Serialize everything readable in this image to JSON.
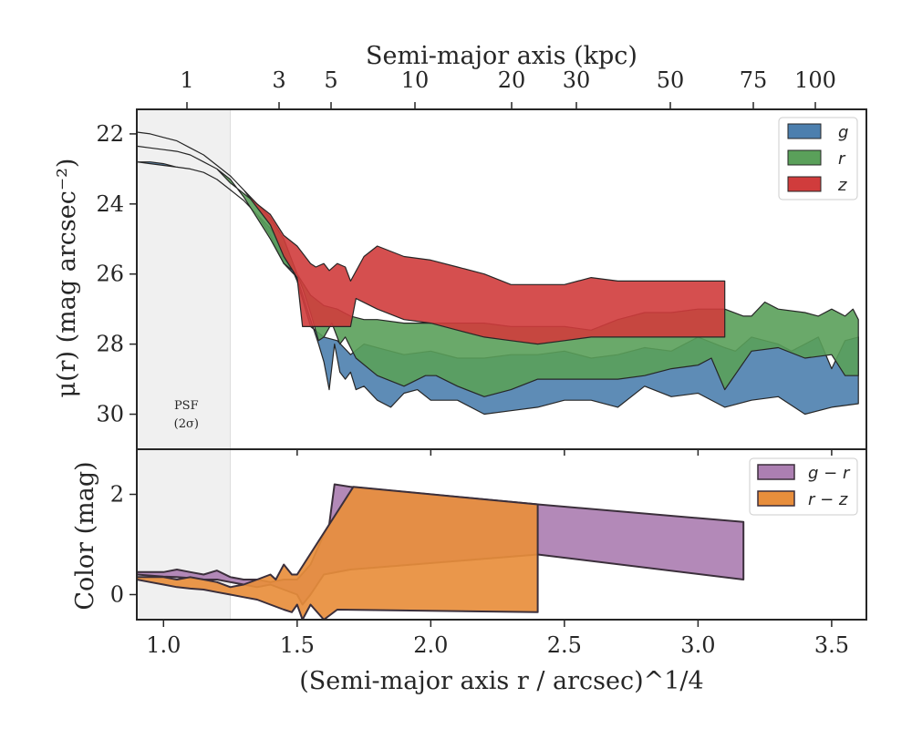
{
  "colors": {
    "g": "#4c7fae",
    "r": "#5aa05a",
    "z": "#d03c3c",
    "g_minus_r": "#ac7fb2",
    "r_minus_z": "#e88e3c",
    "psf_shade": "#f0f0f0",
    "edge": "#262626"
  },
  "chart_data": [
    {
      "type": "area",
      "panel": "surface-brightness",
      "xlabel": "",
      "ylabel": "μ(r) (mag arcsec⁻²)",
      "top_axis_label": "Semi-major axis (kpc)",
      "top_axis_ticks": [
        "1",
        "3",
        "5",
        "10",
        "20",
        "30",
        "50",
        "75",
        "100"
      ],
      "top_axis_tick_values_kpc": [
        1,
        3,
        5,
        10,
        20,
        30,
        50,
        75,
        100
      ],
      "xlim": [
        0.9,
        3.63
      ],
      "ylim": [
        31.0,
        21.3
      ],
      "yticks": [
        "22",
        "24",
        "26",
        "28",
        "30"
      ],
      "ytick_values": [
        22,
        24,
        26,
        28,
        30
      ],
      "y_inverted": true,
      "psf_shade_x": [
        0.9,
        1.25
      ],
      "psf_annotation": [
        "PSF",
        "(2σ)"
      ],
      "legend": {
        "position": "top-right",
        "entries": [
          "g",
          "r",
          "z"
        ]
      },
      "series": [
        {
          "name": "g",
          "x_lower": [
            0.9,
            0.95,
            1.0,
            1.05,
            1.1,
            1.15,
            1.2,
            1.25,
            1.3,
            1.35,
            1.4,
            1.45,
            1.5,
            1.55,
            1.58,
            1.6,
            1.62,
            1.64,
            1.66,
            1.68,
            1.7,
            1.72,
            1.75,
            1.8,
            1.85,
            1.9,
            1.95,
            2.0,
            2.05,
            2.1,
            2.2,
            2.3,
            2.4,
            2.5,
            2.6,
            2.7,
            2.8,
            2.9,
            3.0,
            3.1,
            3.2,
            3.3,
            3.4,
            3.5,
            3.6
          ],
          "y_lower": [
            22.8,
            22.85,
            22.9,
            22.95,
            23.0,
            23.1,
            23.3,
            23.6,
            23.9,
            24.3,
            24.9,
            25.7,
            26.1,
            27.3,
            28.0,
            28.5,
            29.3,
            28.0,
            28.8,
            29.0,
            28.8,
            29.3,
            29.2,
            29.6,
            29.8,
            29.4,
            29.3,
            29.6,
            29.6,
            29.6,
            30.0,
            29.9,
            29.8,
            29.6,
            29.6,
            29.8,
            29.2,
            29.5,
            29.4,
            29.8,
            29.6,
            29.5,
            30.0,
            29.8,
            29.7
          ],
          "x_upper": [
            3.6,
            3.55,
            3.5,
            3.45,
            3.4,
            3.35,
            3.3,
            3.2,
            3.17,
            3.14,
            3.1,
            3.0,
            2.9,
            2.8,
            2.7,
            2.6,
            2.5,
            2.4,
            2.3,
            2.2,
            2.1,
            2.0,
            1.9,
            1.8,
            1.75,
            1.7,
            1.65,
            1.6,
            1.55,
            1.5,
            1.45,
            1.4,
            1.35,
            1.3,
            1.25,
            1.2,
            1.15,
            1.1,
            1.05,
            1.0,
            0.95,
            0.9
          ],
          "y_upper": [
            27.8,
            27.9,
            28.7,
            27.8,
            28.0,
            28.2,
            28.0,
            27.8,
            28.0,
            28.2,
            28.1,
            27.8,
            28.2,
            28.1,
            28.3,
            28.4,
            28.2,
            28.3,
            28.3,
            28.4,
            28.4,
            28.2,
            28.3,
            28.1,
            28.0,
            28.3,
            27.9,
            27.8,
            27.5,
            26.2,
            25.3,
            24.7,
            24.3,
            23.9,
            23.6,
            23.3,
            23.1,
            23.0,
            22.95,
            22.85,
            22.8,
            22.8
          ]
        },
        {
          "name": "r",
          "x_lower": [
            0.9,
            0.95,
            1.0,
            1.05,
            1.1,
            1.15,
            1.2,
            1.25,
            1.3,
            1.35,
            1.4,
            1.45,
            1.5,
            1.52,
            1.55,
            1.58,
            1.6,
            1.63,
            1.66,
            1.68,
            1.72,
            1.8,
            1.9,
            1.98,
            2.02,
            2.1,
            2.2,
            2.3,
            2.4,
            2.5,
            2.6,
            2.7,
            2.8,
            2.9,
            3.0,
            3.05,
            3.1,
            3.2,
            3.3,
            3.4,
            3.5,
            3.55,
            3.6
          ],
          "y_lower": [
            22.35,
            22.4,
            22.45,
            22.5,
            22.6,
            22.8,
            23.0,
            23.3,
            23.8,
            24.4,
            25.0,
            25.7,
            26.0,
            26.4,
            27.1,
            27.9,
            27.8,
            27.4,
            28.0,
            27.8,
            28.4,
            28.9,
            29.2,
            28.9,
            28.9,
            29.2,
            29.5,
            29.3,
            29.0,
            29.0,
            29.0,
            29.0,
            28.9,
            28.7,
            28.6,
            28.4,
            29.3,
            28.2,
            28.1,
            28.4,
            28.3,
            28.9,
            28.9
          ],
          "x_upper": [
            3.6,
            3.58,
            3.55,
            3.5,
            3.45,
            3.4,
            3.3,
            3.25,
            3.2,
            3.17,
            3.1,
            3.0,
            2.9,
            2.8,
            2.7,
            2.6,
            2.5,
            2.4,
            2.3,
            2.2,
            2.1,
            2.0,
            1.9,
            1.8,
            1.75,
            1.7,
            1.65,
            1.6,
            1.55,
            1.5,
            1.45,
            1.4,
            1.35,
            1.3,
            1.25,
            1.2,
            1.15,
            1.1,
            1.05,
            1.0,
            0.95,
            0.9
          ],
          "y_upper": [
            27.3,
            27.0,
            27.2,
            27.0,
            27.2,
            27.1,
            27.0,
            26.8,
            27.2,
            27.2,
            27.0,
            27.0,
            27.1,
            27.1,
            27.3,
            27.6,
            27.5,
            27.5,
            27.5,
            27.4,
            27.4,
            27.4,
            27.4,
            27.3,
            27.3,
            27.2,
            27.0,
            26.9,
            26.6,
            26.0,
            25.0,
            24.4,
            24.0,
            23.7,
            23.4,
            23.0,
            22.8,
            22.6,
            22.5,
            22.45,
            22.4,
            22.35
          ]
        },
        {
          "name": "z",
          "x_lower": [
            0.9,
            0.95,
            1.0,
            1.05,
            1.1,
            1.15,
            1.2,
            1.25,
            1.3,
            1.35,
            1.4,
            1.45,
            1.5,
            1.52,
            1.6,
            1.7,
            1.72,
            1.8,
            1.9,
            2.0,
            2.1,
            2.2,
            2.3,
            2.4,
            2.5,
            2.6,
            2.7,
            2.8,
            2.9,
            3.0,
            3.1
          ],
          "y_lower": [
            21.95,
            22.0,
            22.1,
            22.2,
            22.4,
            22.6,
            22.9,
            23.2,
            23.6,
            24.1,
            24.6,
            25.5,
            26.1,
            27.5,
            27.5,
            27.5,
            26.7,
            27.0,
            27.3,
            27.4,
            27.6,
            27.8,
            27.9,
            28.0,
            27.9,
            27.8,
            27.8,
            27.8,
            27.8,
            27.8,
            27.8
          ],
          "x_upper": [
            3.1,
            3.0,
            2.9,
            2.8,
            2.7,
            2.6,
            2.5,
            2.4,
            2.3,
            2.2,
            2.1,
            2.0,
            1.9,
            1.8,
            1.75,
            1.7,
            1.68,
            1.65,
            1.62,
            1.6,
            1.57,
            1.55,
            1.5,
            1.45,
            1.4,
            1.35,
            1.3,
            1.25,
            1.2,
            1.15,
            1.1,
            1.05,
            1.0,
            0.95,
            0.9
          ],
          "y_upper": [
            26.2,
            26.2,
            26.2,
            26.2,
            26.2,
            26.1,
            26.3,
            26.3,
            26.3,
            26.0,
            25.8,
            25.6,
            25.5,
            25.2,
            25.5,
            26.2,
            25.8,
            25.7,
            25.9,
            25.7,
            25.8,
            25.7,
            25.2,
            24.9,
            24.3,
            24.0,
            23.6,
            23.2,
            22.9,
            22.6,
            22.4,
            22.2,
            22.1,
            22.0,
            21.95
          ]
        }
      ]
    },
    {
      "type": "area",
      "panel": "color",
      "xlabel": "(Semi-major axis r / arcsec)^1/4",
      "ylabel": "Color (mag)",
      "xlim": [
        0.9,
        3.63
      ],
      "ylim": [
        -0.5,
        2.9
      ],
      "xticks": [
        "1.0",
        "1.5",
        "2.0",
        "2.5",
        "3.0",
        "3.5"
      ],
      "xtick_values": [
        1.0,
        1.5,
        2.0,
        2.5,
        3.0,
        3.5
      ],
      "yticks": [
        "0",
        "2"
      ],
      "ytick_values": [
        0,
        2
      ],
      "psf_shade_x": [
        0.9,
        1.25
      ],
      "legend": {
        "position": "top-right",
        "entries": [
          "g − r",
          "r − z"
        ]
      },
      "series": [
        {
          "name": "g − r",
          "x_lower": [
            0.9,
            0.95,
            1.0,
            1.05,
            1.1,
            1.15,
            1.2,
            1.25,
            1.3,
            1.35,
            1.4,
            1.45,
            1.5,
            1.52,
            1.55,
            1.6,
            1.7,
            2.4,
            3.17
          ],
          "y_lower": [
            0.4,
            0.38,
            0.36,
            0.35,
            0.33,
            0.3,
            0.3,
            0.25,
            0.2,
            0.15,
            0.2,
            0.1,
            0.0,
            -0.2,
            0.0,
            0.4,
            0.5,
            0.8,
            0.3
          ],
          "x_upper": [
            3.17,
            2.4,
            1.7,
            1.64,
            1.62,
            1.6,
            1.55,
            1.5,
            1.45,
            1.4,
            1.35,
            1.3,
            1.25,
            1.2,
            1.15,
            1.1,
            1.05,
            1.0,
            0.95,
            0.9
          ],
          "y_upper": [
            1.45,
            1.8,
            2.15,
            2.2,
            1.4,
            1.2,
            0.6,
            0.3,
            0.3,
            0.25,
            0.3,
            0.3,
            0.35,
            0.48,
            0.4,
            0.45,
            0.5,
            0.45,
            0.45,
            0.45
          ]
        },
        {
          "name": "r − z",
          "x_lower": [
            0.9,
            0.95,
            1.0,
            1.05,
            1.1,
            1.15,
            1.2,
            1.25,
            1.3,
            1.35,
            1.4,
            1.45,
            1.48,
            1.5,
            1.52,
            1.55,
            1.6,
            1.65,
            2.4
          ],
          "y_lower": [
            0.3,
            0.25,
            0.2,
            0.15,
            0.12,
            0.1,
            0.05,
            0.0,
            -0.05,
            -0.1,
            -0.2,
            -0.3,
            -0.35,
            -0.2,
            -0.5,
            -0.2,
            -0.5,
            -0.3,
            -0.35
          ],
          "x_upper": [
            2.4,
            1.71,
            1.5,
            1.48,
            1.45,
            1.42,
            1.4,
            1.35,
            1.3,
            1.25,
            1.2,
            1.15,
            1.1,
            1.05,
            1.0,
            0.95,
            0.9
          ],
          "y_upper": [
            1.8,
            2.15,
            0.4,
            0.4,
            0.6,
            0.3,
            0.4,
            0.3,
            0.2,
            0.15,
            0.25,
            0.3,
            0.35,
            0.3,
            0.35,
            0.35,
            0.35
          ]
        }
      ]
    }
  ]
}
